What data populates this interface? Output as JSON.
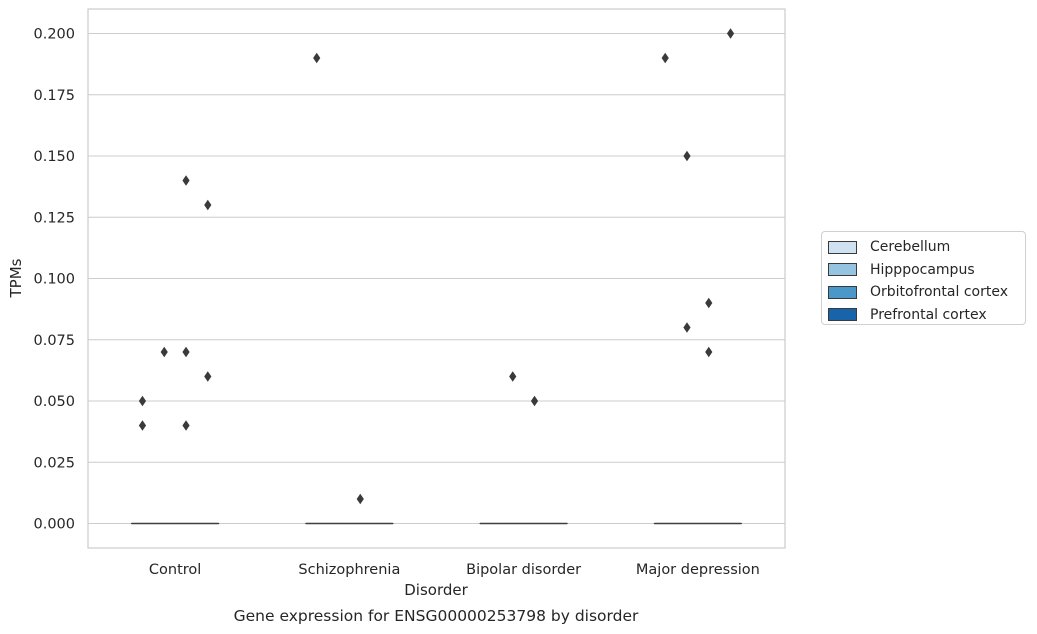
{
  "chart_data": {
    "type": "box",
    "title": "Gene expression for ENSG00000253798 by disorder",
    "xlabel": "Disorder",
    "ylabel": "TPMs",
    "categories": [
      "Control",
      "Schizophrenia",
      "Bipolar disorder",
      "Major depression"
    ],
    "ylim": [
      -0.01,
      0.21
    ],
    "yticks": [
      0.0,
      0.025,
      0.05,
      0.075,
      0.1,
      0.125,
      0.15,
      0.175,
      0.2
    ],
    "ytick_labels": [
      "0.000",
      "0.025",
      "0.050",
      "0.075",
      "0.100",
      "0.125",
      "0.150",
      "0.175",
      "0.200"
    ],
    "grid": "horizontal",
    "legend_position": "right",
    "series": [
      {
        "name": "Cerebellum",
        "color": "#d0e1f2",
        "boxes": [
          {
            "median": 0,
            "q1": 0,
            "q3": 0
          },
          {
            "median": 0,
            "q1": 0,
            "q3": 0
          },
          {
            "median": 0,
            "q1": 0,
            "q3": 0
          },
          {
            "median": 0,
            "q1": 0,
            "q3": 0
          }
        ],
        "outliers": [
          [
            0.04,
            0.05
          ],
          [
            0.19
          ],
          [],
          [
            0.19
          ]
        ]
      },
      {
        "name": "Hipppocampus",
        "color": "#94c4df",
        "boxes": [
          {
            "median": 0,
            "q1": 0,
            "q3": 0
          },
          {
            "median": 0,
            "q1": 0,
            "q3": 0
          },
          {
            "median": 0,
            "q1": 0,
            "q3": 0
          },
          {
            "median": 0,
            "q1": 0,
            "q3": 0
          }
        ],
        "outliers": [
          [
            0.07
          ],
          [],
          [
            0.06
          ],
          [
            0.15,
            0.08
          ]
        ]
      },
      {
        "name": "Orbitofrontal cortex",
        "color": "#4a98c9",
        "boxes": [
          {
            "median": 0,
            "q1": 0,
            "q3": 0
          },
          {
            "median": 0,
            "q1": 0,
            "q3": 0
          },
          {
            "median": 0,
            "q1": 0,
            "q3": 0
          },
          {
            "median": 0,
            "q1": 0,
            "q3": 0
          }
        ],
        "outliers": [
          [
            0.14,
            0.07,
            0.04
          ],
          [
            0.01
          ],
          [
            0.05
          ],
          [
            0.09,
            0.07
          ]
        ]
      },
      {
        "name": "Prefrontal cortex",
        "color": "#1764ab",
        "boxes": [
          {
            "median": 0,
            "q1": 0,
            "q3": 0
          },
          {
            "median": 0,
            "q1": 0,
            "q3": 0
          },
          {
            "median": 0,
            "q1": 0,
            "q3": 0
          },
          {
            "median": 0,
            "q1": 0,
            "q3": 0
          }
        ],
        "outliers": [
          [
            0.13,
            0.06
          ],
          [],
          [],
          [
            0.2
          ]
        ]
      }
    ]
  }
}
